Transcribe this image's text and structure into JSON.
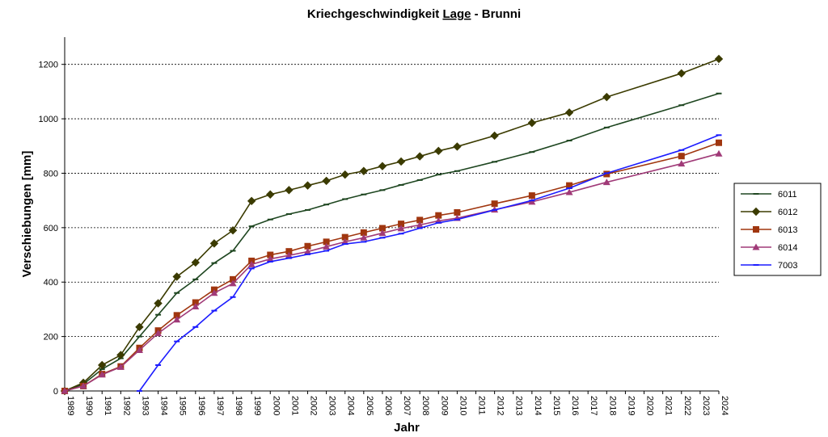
{
  "chart_data": {
    "type": "line",
    "title": {
      "prefix": "Kriechgeschwindigkeit ",
      "underlined": "Lage",
      "suffix": " - Brunni"
    },
    "xlabel": "Jahr",
    "ylabel": "Verschiebungen   [mm]",
    "ylim": [
      0,
      1300
    ],
    "yticks": [
      0,
      200,
      400,
      600,
      800,
      1000,
      1200
    ],
    "ytick_labels": [
      "0",
      "200",
      "400",
      "600",
      "800",
      "1000",
      "1200"
    ],
    "xlim": [
      1989,
      2024
    ],
    "xticks": [
      1989,
      1990,
      1991,
      1992,
      1993,
      1994,
      1995,
      1996,
      1997,
      1998,
      1999,
      2000,
      2001,
      2002,
      2003,
      2004,
      2005,
      2006,
      2007,
      2008,
      2009,
      2010,
      2011,
      2012,
      2013,
      2014,
      2015,
      2016,
      2017,
      2018,
      2019,
      2020,
      2021,
      2022,
      2023,
      2024
    ],
    "xtick_labels": [
      "1989",
      "1990",
      "1991",
      "1992",
      "1993",
      "1994",
      "1995",
      "1996",
      "1997",
      "1998",
      "1999",
      "2000",
      "2001",
      "2002",
      "2003",
      "2004",
      "2005",
      "2006",
      "2007",
      "2008",
      "2009",
      "2010",
      "2011",
      "2012",
      "2013",
      "2014",
      "2015",
      "2016",
      "2017",
      "2018",
      "2019",
      "2020",
      "2021",
      "2022",
      "2023",
      "2024"
    ],
    "grid": "horizontal dashed",
    "legend_position": "right",
    "series": [
      {
        "name": "6011",
        "color": "#1e4620",
        "marker": "dash",
        "x": [
          1989,
          1990,
          1991,
          1992,
          1993,
          1994,
          1995,
          1996,
          1997,
          1998,
          1999,
          2000,
          2001,
          2002,
          2003,
          2004,
          2005,
          2006,
          2007,
          2008,
          2009,
          2010,
          2012,
          2014,
          2016,
          2018,
          2022,
          2024
        ],
        "y": [
          0,
          25,
          80,
          120,
          200,
          280,
          360,
          410,
          470,
          515,
          605,
          630,
          650,
          665,
          685,
          705,
          722,
          738,
          757,
          775,
          795,
          808,
          842,
          878,
          920,
          968,
          1050,
          1093
        ]
      },
      {
        "name": "6012",
        "color": "#3b3b00",
        "marker": "diamond",
        "x": [
          1989,
          1990,
          1991,
          1992,
          1993,
          1994,
          1995,
          1996,
          1997,
          1998,
          1999,
          2000,
          2001,
          2002,
          2003,
          2004,
          2005,
          2006,
          2007,
          2008,
          2009,
          2010,
          2012,
          2014,
          2016,
          2018,
          2022,
          2024
        ],
        "y": [
          0,
          30,
          95,
          132,
          235,
          322,
          420,
          472,
          542,
          590,
          698,
          722,
          738,
          755,
          772,
          795,
          808,
          826,
          843,
          862,
          882,
          898,
          938,
          985,
          1023,
          1080,
          1167,
          1220
        ]
      },
      {
        "name": "6013",
        "color": "#a0360f",
        "marker": "square",
        "x": [
          1989,
          1990,
          1991,
          1992,
          1993,
          1994,
          1995,
          1996,
          1997,
          1998,
          1999,
          2000,
          2001,
          2002,
          2003,
          2004,
          2005,
          2006,
          2007,
          2008,
          2009,
          2010,
          2012,
          2014,
          2016,
          2018,
          2022,
          2024
        ],
        "y": [
          0,
          18,
          62,
          90,
          158,
          222,
          278,
          325,
          372,
          410,
          478,
          500,
          513,
          532,
          548,
          565,
          582,
          598,
          614,
          628,
          645,
          656,
          688,
          718,
          755,
          797,
          863,
          912
        ]
      },
      {
        "name": "6014",
        "color": "#a03a78",
        "marker": "triangle",
        "x": [
          1989,
          1990,
          1991,
          1992,
          1993,
          1994,
          1995,
          1996,
          1997,
          1998,
          1999,
          2000,
          2001,
          2002,
          2003,
          2004,
          2005,
          2006,
          2007,
          2008,
          2009,
          2010,
          2012,
          2014,
          2016,
          2018,
          2022,
          2024
        ],
        "y": [
          0,
          18,
          60,
          88,
          150,
          212,
          262,
          310,
          360,
          395,
          465,
          485,
          498,
          512,
          530,
          548,
          563,
          580,
          597,
          610,
          625,
          635,
          666,
          695,
          730,
          767,
          835,
          872
        ]
      },
      {
        "name": "7003",
        "color": "#1c1cff",
        "marker": "dash",
        "x": [
          1993,
          1994,
          1995,
          1996,
          1997,
          1998,
          1999,
          2000,
          2001,
          2002,
          2003,
          2004,
          2005,
          2006,
          2007,
          2008,
          2009,
          2010,
          2012,
          2014,
          2016,
          2018,
          2022,
          2024
        ],
        "y": [
          0,
          95,
          182,
          235,
          295,
          345,
          450,
          475,
          488,
          502,
          515,
          540,
          548,
          563,
          578,
          598,
          618,
          630,
          665,
          700,
          745,
          800,
          885,
          940
        ]
      }
    ]
  }
}
